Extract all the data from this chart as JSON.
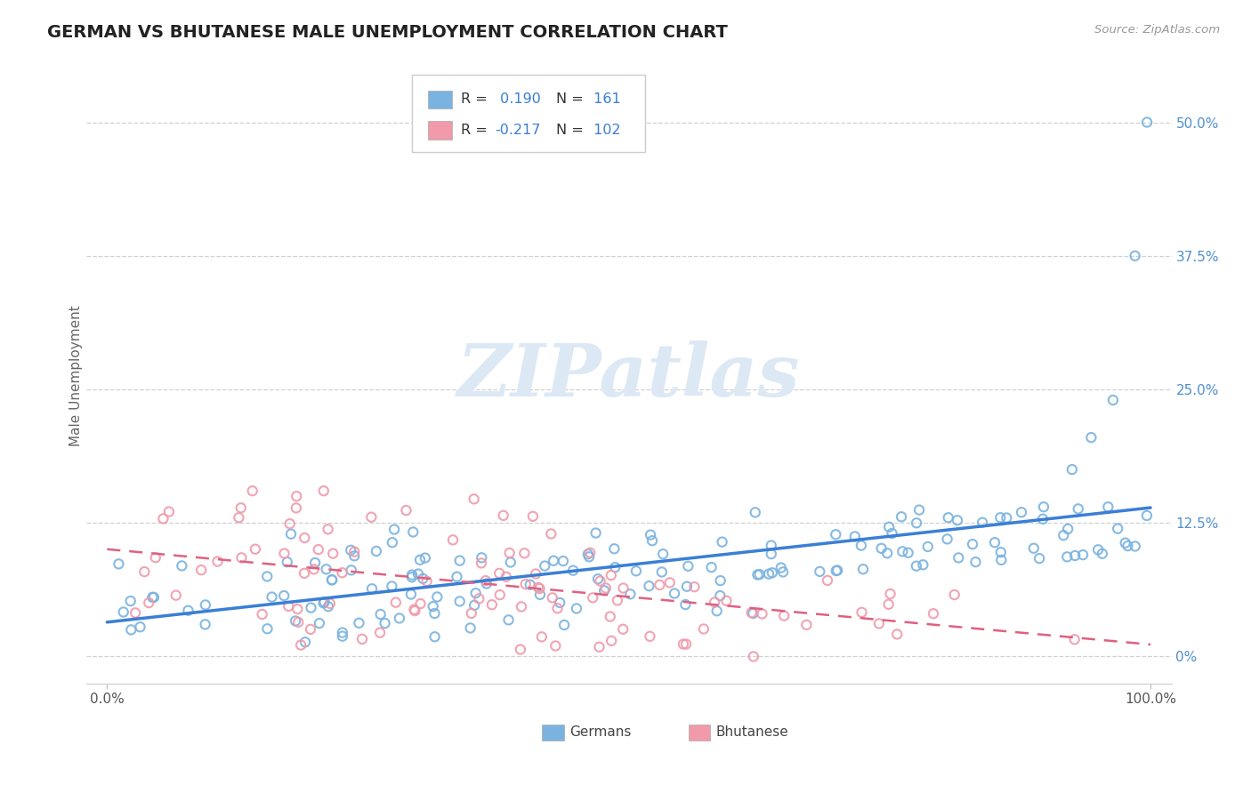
{
  "title": "GERMAN VS BHUTANESE MALE UNEMPLOYMENT CORRELATION CHART",
  "source_text": "Source: ZipAtlas.com",
  "ylabel": "Male Unemployment",
  "xlim": [
    -0.02,
    1.02
  ],
  "ylim": [
    -0.025,
    0.55
  ],
  "yticks": [
    0.0,
    0.125,
    0.25,
    0.375,
    0.5
  ],
  "ytick_labels": [
    "0%",
    "12.5%",
    "25.0%",
    "37.5%",
    "50.0%"
  ],
  "xtick_labels_bottom": [
    "0.0%",
    "100.0%"
  ],
  "xticks_bottom": [
    0.0,
    1.0
  ],
  "german_R": 0.19,
  "german_N": 161,
  "bhutanese_R": -0.217,
  "bhutanese_N": 102,
  "german_color": "#7ab3e0",
  "bhutanese_color": "#f09aaa",
  "german_line_color": "#3a7fd5",
  "bhutanese_line_color": "#e06080",
  "title_color": "#222222",
  "watermark_color": "#dde8f5",
  "background_color": "#ffffff",
  "grid_color": "#d0d0d0",
  "ytick_color": "#5090d0",
  "xtick_color": "#555555",
  "source_color": "#999999"
}
